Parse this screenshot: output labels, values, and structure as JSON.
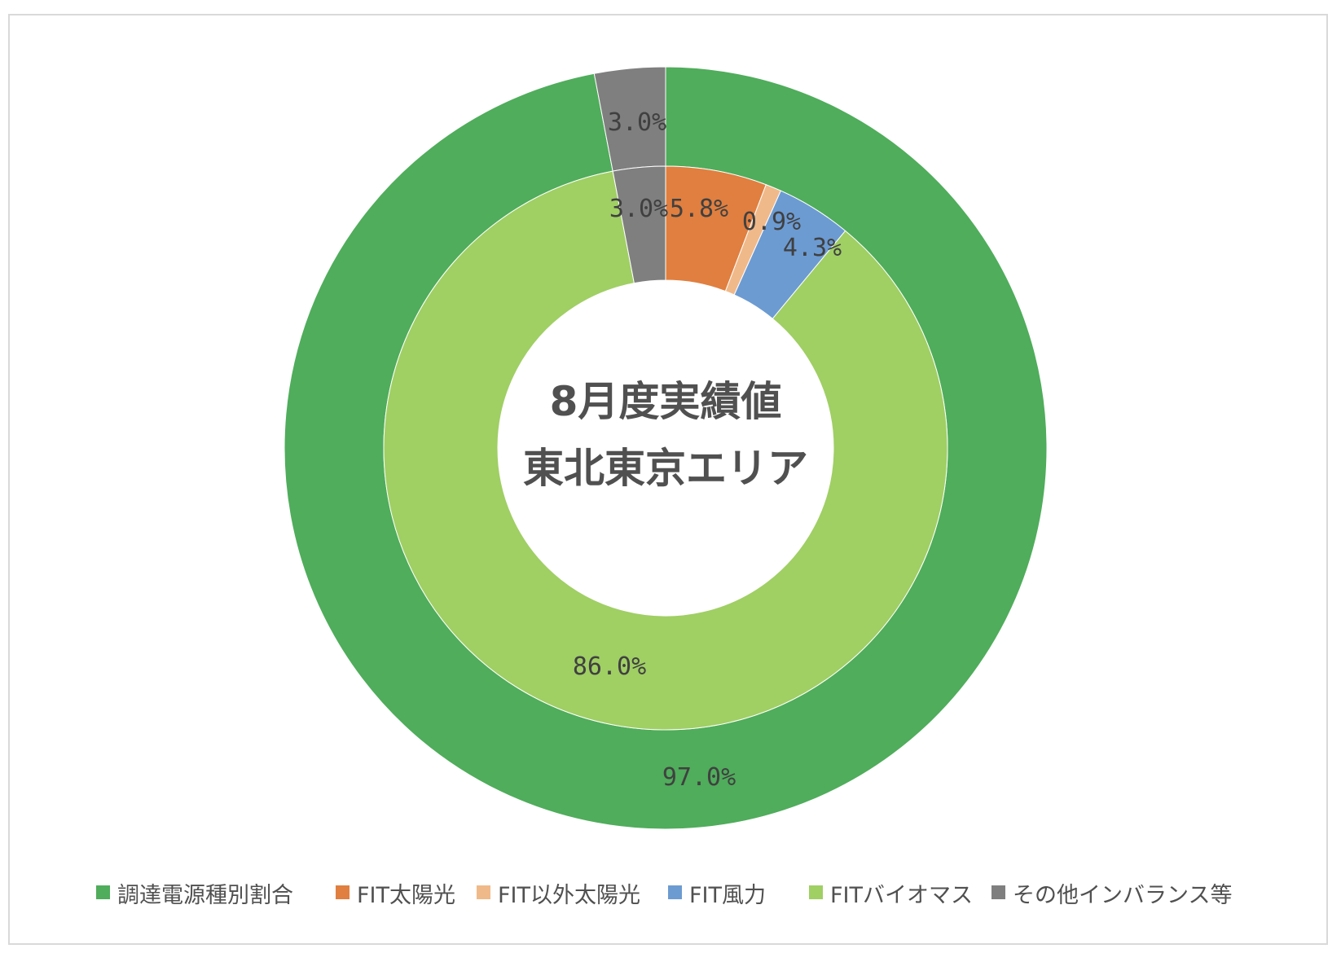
{
  "chart_data": {
    "type": "donut",
    "center_text": [
      "8月度実績値",
      "東北東京エリア"
    ],
    "outer_ring": {
      "series": [
        {
          "name": "調達電源種別割合",
          "value": 97.0,
          "label": "97.0%",
          "color": "#4fad5b"
        },
        {
          "name": "その他インバランス等",
          "value": 3.0,
          "label": "3.0%",
          "color": "#7f7f7f"
        }
      ]
    },
    "inner_ring": {
      "series": [
        {
          "name": "FIT太陽光",
          "value": 5.8,
          "label": "5.8%",
          "color": "#e07f3f"
        },
        {
          "name": "FIT以外太陽光",
          "value": 0.9,
          "label": "0.9%",
          "color": "#f0b98a"
        },
        {
          "name": "FIT風力",
          "value": 4.3,
          "label": "4.3%",
          "color": "#6c9bd2"
        },
        {
          "name": "FITバイオマス",
          "value": 86.0,
          "label": "86.0%",
          "color": "#a0cf64"
        },
        {
          "name": "その他インバランス等",
          "value": 3.0,
          "label": "3.0%",
          "color": "#7f7f7f"
        }
      ]
    },
    "legend": {
      "position": "bottom",
      "items": [
        {
          "label": "調達電源種別割合",
          "color": "#4fad5b"
        },
        {
          "label": "FIT太陽光",
          "color": "#e07f3f"
        },
        {
          "label": "FIT以外太陽光",
          "color": "#f0b98a"
        },
        {
          "label": "FIT風力",
          "color": "#6c9bd2"
        },
        {
          "label": "FITバイオマス",
          "color": "#a0cf64"
        },
        {
          "label": "その他インバランス等",
          "color": "#7f7f7f"
        }
      ]
    }
  }
}
